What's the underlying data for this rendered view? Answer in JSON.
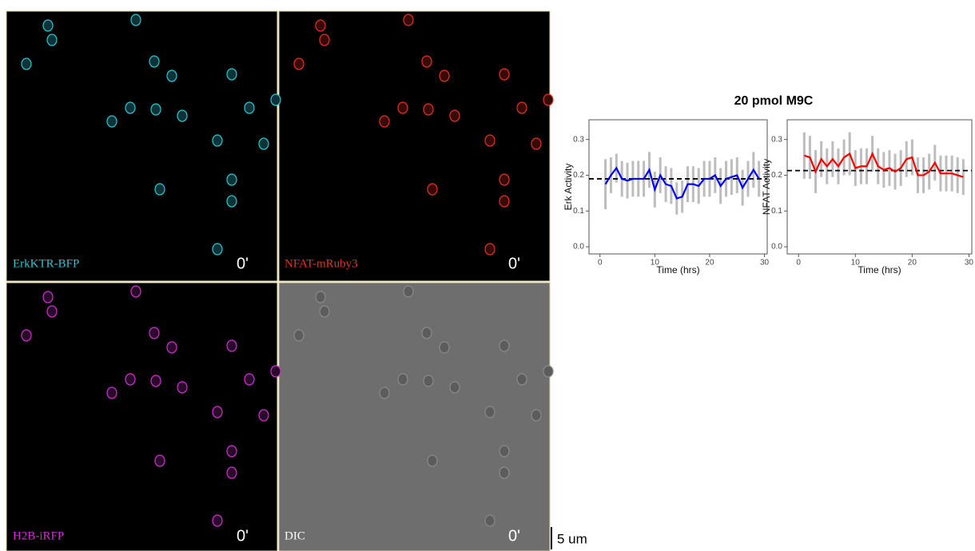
{
  "panels": [
    {
      "label": "ErkKTR-BFP",
      "time": "0'"
    },
    {
      "label": "NFAT-mRuby3",
      "time": "0'"
    },
    {
      "label": "H2B-iRFP",
      "time": "0'"
    },
    {
      "label": "DIC",
      "time": "0'"
    }
  ],
  "scale_bar": "5 um",
  "figure_title": "20 pmol M9C",
  "chart_data": [
    {
      "type": "line",
      "ylabel": "Erk Activity",
      "xlabel": "Time (hrs)",
      "x": [
        1,
        2,
        3,
        4,
        5,
        6,
        7,
        8,
        9,
        10,
        11,
        12,
        13,
        14,
        15,
        16,
        17,
        18,
        19,
        20,
        21,
        22,
        23,
        24,
        25,
        26,
        27,
        28,
        29
      ],
      "series": [
        {
          "color": "#0000ff",
          "values": [
            0.175,
            0.2,
            0.22,
            0.19,
            0.185,
            0.19,
            0.19,
            0.19,
            0.215,
            0.16,
            0.2,
            0.175,
            0.17,
            0.135,
            0.14,
            0.175,
            0.175,
            0.17,
            0.19,
            0.19,
            0.2,
            0.17,
            0.19,
            0.195,
            0.2,
            0.165,
            0.19,
            0.215,
            0.19
          ],
          "errors": [
            0.07,
            0.05,
            0.04,
            0.05,
            0.05,
            0.05,
            0.05,
            0.05,
            0.05,
            0.05,
            0.05,
            0.05,
            0.05,
            0.045,
            0.045,
            0.05,
            0.05,
            0.05,
            0.05,
            0.05,
            0.05,
            0.05,
            0.05,
            0.05,
            0.05,
            0.05,
            0.05,
            0.05,
            0.05
          ]
        }
      ],
      "hline": 0.19,
      "xlim": [
        -2,
        30.5
      ],
      "ylim": [
        -0.02,
        0.355
      ],
      "xticks": [
        0,
        10,
        20,
        30
      ],
      "yticks": [
        {
          "value": 0,
          "label": "0.0"
        },
        0.1,
        0.2,
        0.3
      ]
    },
    {
      "type": "line",
      "ylabel": "NFAT Activity",
      "xlabel": "Time (hrs)",
      "x": [
        1,
        2,
        3,
        4,
        5,
        6,
        7,
        8,
        9,
        10,
        11,
        12,
        13,
        14,
        15,
        16,
        17,
        18,
        19,
        20,
        21,
        22,
        23,
        24,
        25,
        26,
        27,
        28,
        29
      ],
      "series": [
        {
          "color": "#ff0000",
          "values": [
            0.255,
            0.25,
            0.21,
            0.245,
            0.225,
            0.245,
            0.225,
            0.25,
            0.26,
            0.22,
            0.225,
            0.225,
            0.26,
            0.225,
            0.215,
            0.22,
            0.21,
            0.22,
            0.245,
            0.25,
            0.2,
            0.2,
            0.21,
            0.235,
            0.205,
            0.205,
            0.205,
            0.2,
            0.195
          ],
          "errors": [
            0.065,
            0.06,
            0.06,
            0.05,
            0.05,
            0.05,
            0.05,
            0.05,
            0.06,
            0.05,
            0.05,
            0.05,
            0.05,
            0.05,
            0.05,
            0.05,
            0.05,
            0.05,
            0.05,
            0.05,
            0.05,
            0.05,
            0.05,
            0.05,
            0.05,
            0.05,
            0.05,
            0.05,
            0.05
          ]
        }
      ],
      "hline": 0.213,
      "xlim": [
        -2,
        30.5
      ],
      "ylim": [
        -0.02,
        0.355
      ],
      "xticks": [
        0,
        10,
        20,
        30
      ],
      "yticks": [
        {
          "value": 0,
          "label": "0.0"
        },
        0.1,
        0.2,
        0.3
      ]
    }
  ]
}
